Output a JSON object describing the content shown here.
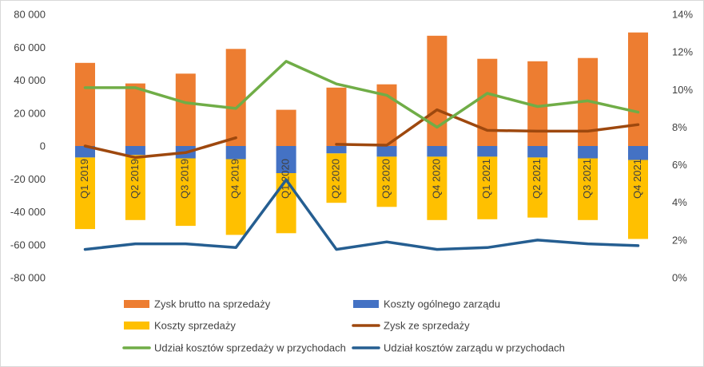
{
  "chart_data": {
    "type": "bar",
    "categories": [
      "Q1 2019",
      "Q2 2019",
      "Q3 2019",
      "Q4 2019",
      "Q1 2020",
      "Q2 2020",
      "Q3 2020",
      "Q4 2020",
      "Q1 2021",
      "Q2 2021",
      "Q3 2021",
      "Q4 2021"
    ],
    "y_left": {
      "range": [
        -80000,
        80000
      ],
      "step": 20000
    },
    "y_right": {
      "range": [
        0,
        14
      ],
      "step": 2,
      "unit": "%"
    },
    "grid": false,
    "legend_position": "bottom",
    "bar_series": [
      {
        "name": "Zysk brutto na sprzedaży",
        "color": "#ED7D31",
        "values": [
          50500,
          38000,
          44000,
          59000,
          22000,
          35500,
          37500,
          67000,
          53000,
          51500,
          53500,
          69000
        ]
      },
      {
        "name": "Koszty ogólnego zarządu",
        "color": "#4472C4",
        "values": [
          -7000,
          -5500,
          -7500,
          -8000,
          -16500,
          -4500,
          -6500,
          -6500,
          -6500,
          -7000,
          -7500,
          -8500
        ]
      },
      {
        "name": "Koszty sprzedaży",
        "color": "#FFC000",
        "values": [
          -43500,
          -39500,
          -41000,
          -46000,
          -36500,
          -30000,
          -30500,
          -38500,
          -38000,
          -36500,
          -37500,
          -48000
        ]
      }
    ],
    "line_series": [
      {
        "name": "Zysk ze sprzedaży",
        "color": "#9E480E",
        "axis": "left",
        "values": [
          0,
          -7000,
          -4000,
          5000,
          null,
          1000,
          500,
          22000,
          9500,
          9000,
          9000,
          13000
        ]
      },
      {
        "name": "Udział kosztów sprzedaży w przychodach",
        "color": "#70AD47",
        "axis": "right",
        "values": [
          10.1,
          10.1,
          9.3,
          9.0,
          11.5,
          10.3,
          9.7,
          8.0,
          9.8,
          9.1,
          9.4,
          8.8
        ]
      },
      {
        "name": "Udział kosztów zarządu w przychodach",
        "color": "#255E91",
        "axis": "right",
        "values": [
          1.5,
          1.8,
          1.8,
          1.6,
          5.2,
          1.5,
          1.9,
          1.5,
          1.6,
          2.0,
          1.8,
          1.7
        ]
      }
    ],
    "legend_order": [
      "Zysk brutto na sprzedaży",
      "Koszty ogólnego zarządu",
      "Koszty sprzedaży",
      "Zysk ze sprzedaży",
      "Udział kosztów sprzedaży w przychodach",
      "Udział kosztów zarządu w przychodach"
    ]
  }
}
